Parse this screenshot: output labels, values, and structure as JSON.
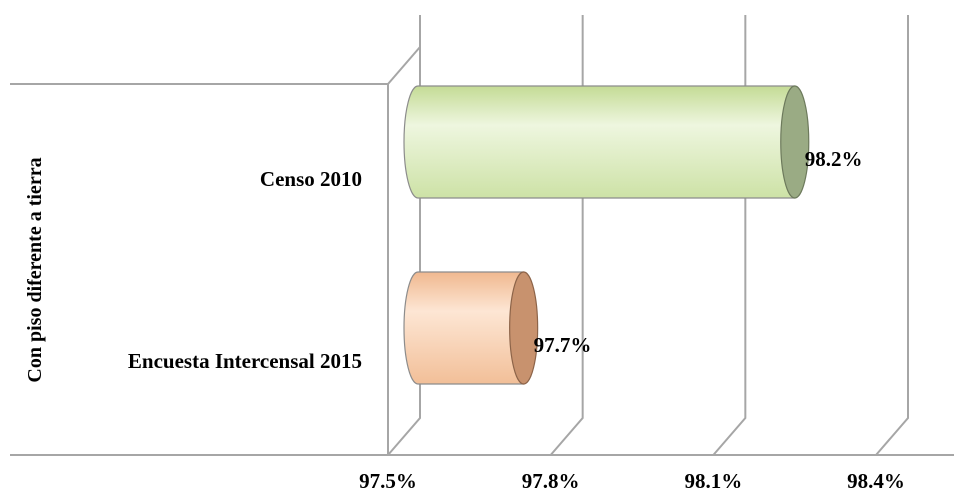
{
  "chart_data": {
    "type": "bar",
    "orientation": "horizontal",
    "style": "3d-cylinder",
    "group_label": "Con piso diferente a tierra",
    "categories": [
      "Censo 2010",
      "Encuesta Intercensal 2015"
    ],
    "values": [
      98.2,
      97.7
    ],
    "data_labels": [
      "98.2%",
      "97.7%"
    ],
    "x_ticks": [
      "97.5%",
      "97.8%",
      "98.1%",
      "98.4%"
    ],
    "xlim": [
      97.5,
      98.4
    ],
    "grid": true,
    "colors": {
      "Censo 2010": "#d7e8b6",
      "Encuesta Intercensal 2015": "#f6c9a6"
    }
  }
}
